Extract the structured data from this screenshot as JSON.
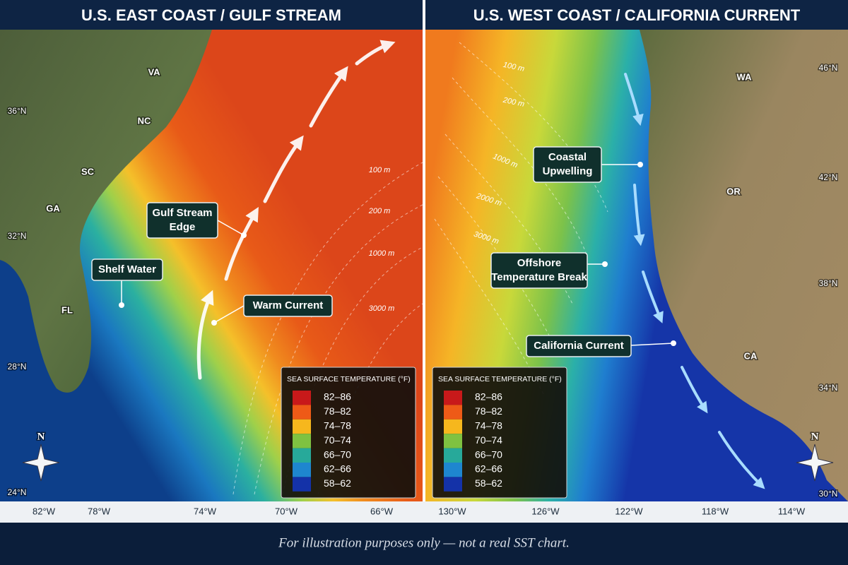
{
  "footer": "For illustration purposes only — not a real SST chart.",
  "panels": [
    {
      "title": "U.S. EAST COAST / GULF STREAM",
      "latitude_labels": [
        "36°N",
        "32°N",
        "28°N",
        "24°N"
      ],
      "longitude_labels": [
        "82°W",
        "78°W",
        "74°W",
        "70°W",
        "66°W"
      ],
      "region_labels": [
        "VA",
        "NC",
        "SC",
        "GA",
        "FL"
      ],
      "depth_labels": [
        "100 m",
        "200 m",
        "1000 m",
        "3000 m"
      ],
      "callouts": [
        {
          "lines": [
            "Gulf Stream",
            "Edge"
          ]
        },
        {
          "lines": [
            "Shelf Water"
          ]
        },
        {
          "lines": [
            "Warm Current"
          ]
        }
      ],
      "compass": "N",
      "legend": {
        "title": "SEA SURFACE TEMPERATURE (°F)",
        "items": [
          {
            "label": "82–86",
            "color": "#c8191a"
          },
          {
            "label": "78–82",
            "color": "#ee5a17"
          },
          {
            "label": "74–78",
            "color": "#f6b71d"
          },
          {
            "label": "70–74",
            "color": "#7fc241"
          },
          {
            "label": "66–70",
            "color": "#27a99a"
          },
          {
            "label": "62–66",
            "color": "#1e86cf"
          },
          {
            "label": "58–62",
            "color": "#1432a8"
          }
        ]
      }
    },
    {
      "title": "U.S. WEST COAST / CALIFORNIA CURRENT",
      "latitude_labels": [
        "46°N",
        "42°N",
        "38°N",
        "34°N",
        "30°N"
      ],
      "longitude_labels": [
        "130°W",
        "126°W",
        "122°W",
        "118°W",
        "114°W"
      ],
      "region_labels": [
        "WA",
        "OR",
        "CA"
      ],
      "depth_labels": [
        "100 m",
        "200 m",
        "1000 m",
        "2000 m",
        "3000 m"
      ],
      "callouts": [
        {
          "lines": [
            "Coastal",
            "Upwelling"
          ]
        },
        {
          "lines": [
            "Offshore",
            "Temperature Break"
          ]
        },
        {
          "lines": [
            "California Current"
          ]
        }
      ],
      "compass": "N",
      "legend": {
        "title": "SEA SURFACE TEMPERATURE (°F)",
        "items": [
          {
            "label": "82–86",
            "color": "#c8191a"
          },
          {
            "label": "78–82",
            "color": "#ee5a17"
          },
          {
            "label": "74–78",
            "color": "#f6b71d"
          },
          {
            "label": "70–74",
            "color": "#7fc241"
          },
          {
            "label": "66–70",
            "color": "#27a99a"
          },
          {
            "label": "62–66",
            "color": "#1e86cf"
          },
          {
            "label": "58–62",
            "color": "#1432a8"
          }
        ]
      }
    }
  ]
}
